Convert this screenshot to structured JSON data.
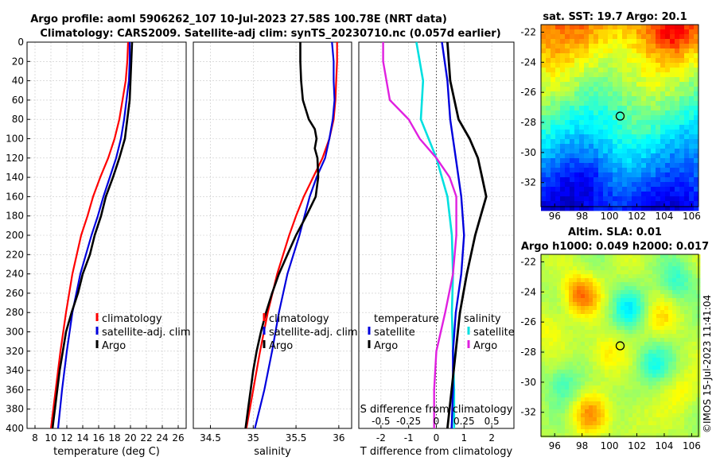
{
  "header": {
    "title_line1": "Argo profile: aoml 5906262_107 10-Jul-2023 27.58S 100.78E (NRT data)",
    "title_line2": "Climatology: CARS2009. Satellite-adj clim: synTS_20230710.nc (0.057d earlier)"
  },
  "watermark": "©IMOS 15-Jul-2023 11:41:04",
  "colors": {
    "climatology": "#ff0000",
    "satellite": "#0000dd",
    "argo": "#000000",
    "sal_sat": "#00e0e0",
    "sal_argo": "#e020e0",
    "zero_line": "#444444"
  },
  "chart_data": [
    {
      "id": "temperature",
      "type": "line",
      "xlabel": "temperature (deg C)",
      "ylabel": "",
      "xlim": [
        7,
        27
      ],
      "ylim": [
        400,
        0
      ],
      "xticks": [
        8,
        10,
        12,
        14,
        16,
        18,
        20,
        22,
        24,
        26
      ],
      "yticks": [
        0,
        20,
        40,
        60,
        80,
        100,
        120,
        140,
        160,
        180,
        200,
        220,
        240,
        260,
        280,
        300,
        320,
        340,
        360,
        380,
        400
      ],
      "legend": [
        "climatology",
        "satellite-adj. clim",
        "Argo"
      ],
      "series": [
        {
          "name": "climatology",
          "depth": [
            0,
            20,
            40,
            60,
            80,
            100,
            120,
            140,
            160,
            180,
            200,
            240,
            280,
            320,
            360,
            400
          ],
          "values": [
            19.7,
            19.6,
            19.4,
            19.0,
            18.6,
            18.0,
            17.2,
            16.2,
            15.3,
            14.6,
            13.8,
            12.7,
            11.9,
            11.2,
            10.6,
            10.0
          ]
        },
        {
          "name": "satellite-adj. clim",
          "depth": [
            0,
            20,
            40,
            60,
            80,
            100,
            120,
            140,
            160,
            180,
            200,
            240,
            280,
            320,
            360,
            400
          ],
          "values": [
            19.9,
            19.9,
            19.8,
            19.5,
            19.2,
            18.8,
            18.2,
            17.4,
            16.6,
            15.9,
            15.1,
            13.7,
            12.7,
            12.0,
            11.4,
            10.9
          ]
        },
        {
          "name": "Argo",
          "depth": [
            0,
            20,
            40,
            60,
            80,
            100,
            120,
            140,
            160,
            180,
            200,
            220,
            240,
            260,
            280,
            300,
            320,
            340,
            360,
            380,
            400
          ],
          "values": [
            20.2,
            20.1,
            20.0,
            19.9,
            19.6,
            19.3,
            18.6,
            17.8,
            16.9,
            16.3,
            15.5,
            14.9,
            14.0,
            13.4,
            12.6,
            11.9,
            11.5,
            11.1,
            10.8,
            10.5,
            10.2
          ]
        }
      ]
    },
    {
      "id": "salinity",
      "type": "line",
      "xlabel": "salinity",
      "xlim": [
        34.3,
        36.15
      ],
      "ylim": [
        400,
        0
      ],
      "xticks": [
        34.5,
        35,
        35.5,
        36
      ],
      "legend": [
        "climatology",
        "satellite-adj. clim",
        "Argo"
      ],
      "series": [
        {
          "name": "climatology",
          "depth": [
            0,
            20,
            40,
            60,
            80,
            100,
            120,
            140,
            160,
            180,
            200,
            240,
            280,
            320,
            360,
            400
          ],
          "values": [
            35.98,
            35.98,
            35.97,
            35.96,
            35.94,
            35.89,
            35.81,
            35.7,
            35.59,
            35.5,
            35.42,
            35.28,
            35.17,
            35.08,
            35.0,
            34.92
          ]
        },
        {
          "name": "satellite-adj. clim",
          "depth": [
            0,
            20,
            40,
            60,
            80,
            100,
            120,
            140,
            160,
            180,
            200,
            240,
            280,
            320,
            360,
            400
          ],
          "values": [
            35.92,
            35.94,
            35.94,
            35.95,
            35.93,
            35.89,
            35.84,
            35.74,
            35.66,
            35.6,
            35.54,
            35.4,
            35.3,
            35.22,
            35.13,
            35.02
          ]
        },
        {
          "name": "Argo",
          "depth": [
            0,
            20,
            40,
            60,
            80,
            90,
            100,
            110,
            120,
            140,
            160,
            180,
            200,
            220,
            240,
            260,
            280,
            300,
            320,
            340,
            360,
            380,
            400
          ],
          "values": [
            35.55,
            35.55,
            35.56,
            35.58,
            35.65,
            35.72,
            35.74,
            35.72,
            35.75,
            35.76,
            35.73,
            35.62,
            35.5,
            35.4,
            35.3,
            35.22,
            35.15,
            35.09,
            35.04,
            35.0,
            34.97,
            34.94,
            34.91
          ]
        }
      ]
    },
    {
      "id": "difference",
      "type": "line",
      "xlabel": "T difference from climatology",
      "xlim_t": [
        -2.8,
        2.8
      ],
      "xticks_t": [
        -2,
        -1,
        0,
        1,
        2
      ],
      "top_label": "S difference from climatology",
      "xticks_s": [
        -0.5,
        -0.25,
        0,
        0.25,
        0.5
      ],
      "xtick_labels_s": [
        "-0.5",
        "-0.25",
        "0",
        "0.25",
        "0.5"
      ],
      "legend_left_title": "temperature",
      "legend_right_title": "salinity",
      "legend_left": [
        "satellite",
        "Argo"
      ],
      "legend_right": [
        "satellite",
        "Argo"
      ],
      "ylim": [
        400,
        0
      ],
      "series": [
        {
          "name": "T satellite",
          "depth": [
            0,
            40,
            80,
            120,
            160,
            200,
            240,
            280,
            320,
            360,
            400
          ],
          "values": [
            0.2,
            0.4,
            0.5,
            0.7,
            0.9,
            1.0,
            0.9,
            0.7,
            0.6,
            0.6,
            0.55
          ]
        },
        {
          "name": "T Argo",
          "depth": [
            0,
            40,
            80,
            100,
            120,
            140,
            160,
            180,
            200,
            240,
            280,
            320,
            360,
            400
          ],
          "values": [
            0.4,
            0.5,
            0.8,
            1.2,
            1.5,
            1.65,
            1.8,
            1.6,
            1.4,
            1.1,
            0.85,
            0.7,
            0.55,
            0.4
          ]
        },
        {
          "name": "S satellite",
          "depth": [
            0,
            40,
            80,
            120,
            160,
            200,
            240,
            280,
            320,
            360,
            400
          ],
          "values": [
            -0.18,
            -0.12,
            -0.14,
            0.0,
            0.1,
            0.14,
            0.15,
            0.14,
            0.15,
            0.16,
            0.16
          ]
        },
        {
          "name": "S Argo",
          "depth": [
            0,
            20,
            60,
            80,
            100,
            120,
            140,
            160,
            200,
            240,
            280,
            320,
            360,
            400
          ],
          "values": [
            -0.48,
            -0.48,
            -0.42,
            -0.25,
            -0.15,
            0.0,
            0.12,
            0.18,
            0.18,
            0.15,
            0.08,
            0.0,
            -0.02,
            -0.02
          ]
        }
      ]
    },
    {
      "id": "sst_map",
      "type": "heatmap",
      "title": "sat. SST: 19.7 Argo: 20.1",
      "xlim": [
        95,
        106.5
      ],
      "ylim": [
        -33.6,
        -21.5
      ],
      "xticks": [
        96,
        98,
        100,
        102,
        104,
        106
      ],
      "yticks": [
        -22,
        -24,
        -26,
        -28,
        -30,
        -32
      ],
      "marker": {
        "lon": 100.78,
        "lat": -27.58
      }
    },
    {
      "id": "sla_map",
      "type": "heatmap",
      "title_line1": "Altim. SLA: 0.01",
      "title_line2": "Argo h1000: 0.049 h2000: 0.017",
      "xlim": [
        95,
        106.5
      ],
      "ylim": [
        -33.6,
        -21.5
      ],
      "xticks": [
        96,
        98,
        100,
        102,
        104,
        106
      ],
      "yticks": [
        -22,
        -24,
        -26,
        -28,
        -30,
        -32
      ],
      "marker": {
        "lon": 100.78,
        "lat": -27.58
      }
    }
  ]
}
